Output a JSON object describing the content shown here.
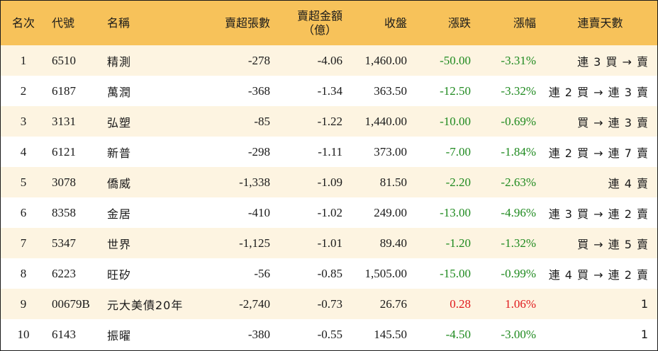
{
  "columns": {
    "rank": "名次",
    "code": "代號",
    "name": "名稱",
    "sell_volume": "賣超張數",
    "sell_amount_line1": "賣超金額",
    "sell_amount_line2": "（億）",
    "close": "收盤",
    "change": "漲跌",
    "change_pct": "漲幅",
    "streak": "連賣天數"
  },
  "colors": {
    "header_bg": "#f7c25a",
    "odd_row_bg": "#fdf4e1",
    "negative": "#1f8a1f",
    "positive": "#e0191c"
  },
  "rows": [
    {
      "rank": "1",
      "code": "6510",
      "name": "精測",
      "sell_volume": "-278",
      "sell_amount": "-4.06",
      "close": "1,460.00",
      "change": "-50.00",
      "change_pct": "-3.31%",
      "streak": "連 3 買 → 賣",
      "direction": "down"
    },
    {
      "rank": "2",
      "code": "6187",
      "name": "萬潤",
      "sell_volume": "-368",
      "sell_amount": "-1.34",
      "close": "363.50",
      "change": "-12.50",
      "change_pct": "-3.32%",
      "streak": "連 2 買 → 連 3 賣",
      "direction": "down"
    },
    {
      "rank": "3",
      "code": "3131",
      "name": "弘塑",
      "sell_volume": "-85",
      "sell_amount": "-1.22",
      "close": "1,440.00",
      "change": "-10.00",
      "change_pct": "-0.69%",
      "streak": "買 → 連 3 賣",
      "direction": "down"
    },
    {
      "rank": "4",
      "code": "6121",
      "name": "新普",
      "sell_volume": "-298",
      "sell_amount": "-1.11",
      "close": "373.00",
      "change": "-7.00",
      "change_pct": "-1.84%",
      "streak": "連 2 買 → 連 7 賣",
      "direction": "down"
    },
    {
      "rank": "5",
      "code": "3078",
      "name": "僑威",
      "sell_volume": "-1,338",
      "sell_amount": "-1.09",
      "close": "81.50",
      "change": "-2.20",
      "change_pct": "-2.63%",
      "streak": "連 4 賣",
      "direction": "down"
    },
    {
      "rank": "6",
      "code": "8358",
      "name": "金居",
      "sell_volume": "-410",
      "sell_amount": "-1.02",
      "close": "249.00",
      "change": "-13.00",
      "change_pct": "-4.96%",
      "streak": "連 3 買 → 連 2 賣",
      "direction": "down"
    },
    {
      "rank": "7",
      "code": "5347",
      "name": "世界",
      "sell_volume": "-1,125",
      "sell_amount": "-1.01",
      "close": "89.40",
      "change": "-1.20",
      "change_pct": "-1.32%",
      "streak": "買 → 連 5 賣",
      "direction": "down"
    },
    {
      "rank": "8",
      "code": "6223",
      "name": "旺矽",
      "sell_volume": "-56",
      "sell_amount": "-0.85",
      "close": "1,505.00",
      "change": "-15.00",
      "change_pct": "-0.99%",
      "streak": "連 4 買 → 連 2 賣",
      "direction": "down"
    },
    {
      "rank": "9",
      "code": "00679B",
      "name": "元大美債20年",
      "sell_volume": "-2,740",
      "sell_amount": "-0.73",
      "close": "26.76",
      "change": "0.28",
      "change_pct": "1.06%",
      "streak": "1",
      "direction": "up"
    },
    {
      "rank": "10",
      "code": "6143",
      "name": "振曜",
      "sell_volume": "-380",
      "sell_amount": "-0.55",
      "close": "145.50",
      "change": "-4.50",
      "change_pct": "-3.00%",
      "streak": "1",
      "direction": "down"
    }
  ]
}
